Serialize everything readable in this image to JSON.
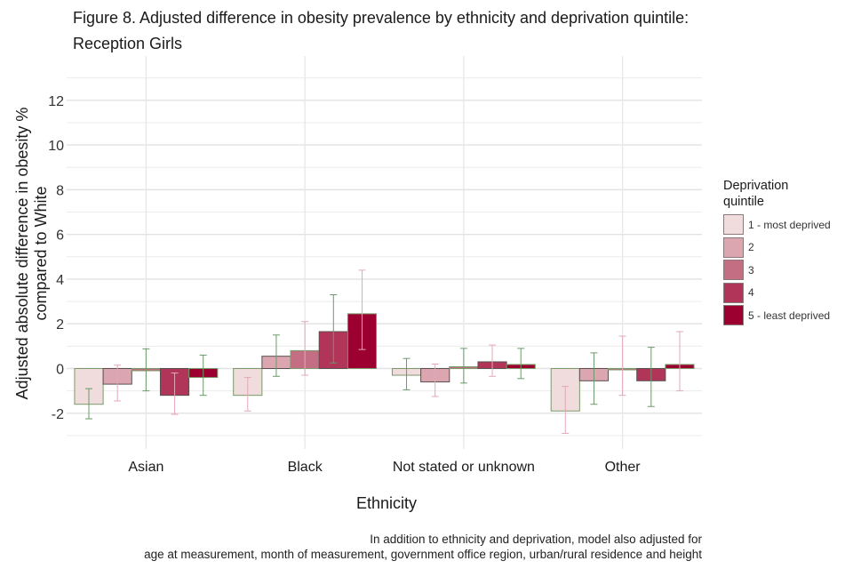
{
  "chart_data": {
    "type": "bar",
    "title": "Figure 8. Adjusted difference in obesity prevalence by ethnicity and deprivation quintile:",
    "subtitle": "Reception Girls",
    "xlabel": "Ethnicity",
    "ylabel_line1": "Adjusted absolute difference in obesity %",
    "ylabel_line2": "compared to White",
    "caption_line1": "In addition to ethnicity and deprivation, model also adjusted for",
    "caption_line2": "age at measurement, month of measurement, government office region, urban/rural residence and height",
    "ylim": [
      -3.6,
      14.3
    ],
    "y_ticks": [
      -2,
      0,
      2,
      4,
      6,
      8,
      10,
      12
    ],
    "y_tick_labels": [
      "-2",
      "0",
      "2",
      "4",
      "6",
      "8",
      "10",
      "12"
    ],
    "grid": true,
    "legend_position": "right",
    "legend_title_line1": "Deprivation",
    "legend_title_line2": "quintile",
    "categories": [
      "Asian",
      "Black",
      "Not stated or unknown",
      "Other"
    ],
    "series": [
      {
        "name": "1 - most deprived",
        "color": "#f0dcdc",
        "values": [
          -1.6,
          -1.2,
          -0.3,
          -1.9
        ],
        "ci_low": [
          -2.25,
          -1.9,
          -0.95,
          -2.9
        ],
        "ci_high": [
          -0.9,
          -0.4,
          0.45,
          -0.8
        ]
      },
      {
        "name": "2",
        "color": "#dca6b0",
        "values": [
          -0.7,
          0.55,
          -0.6,
          -0.55
        ],
        "ci_low": [
          -1.45,
          -0.35,
          -1.25,
          -1.6
        ],
        "ci_high": [
          0.15,
          1.5,
          0.2,
          0.7
        ]
      },
      {
        "name": "3",
        "color": "#c46e84",
        "values": [
          -0.1,
          0.8,
          0.08,
          0.0
        ],
        "ci_low": [
          -1.0,
          -0.3,
          -0.65,
          -1.2
        ],
        "ci_high": [
          0.88,
          2.1,
          0.9,
          1.45
        ]
      },
      {
        "name": "4",
        "color": "#b03558",
        "values": [
          -1.2,
          1.65,
          0.3,
          -0.55
        ],
        "ci_low": [
          -2.05,
          0.25,
          -0.35,
          -1.7
        ],
        "ci_high": [
          -0.2,
          3.3,
          1.05,
          0.95
        ]
      },
      {
        "name": "5 - least deprived",
        "color": "#9b0030",
        "values": [
          -0.4,
          2.45,
          0.18,
          0.18
        ],
        "ci_low": [
          -1.2,
          0.85,
          -0.45,
          -1.0
        ],
        "ci_high": [
          0.6,
          4.4,
          0.9,
          1.65
        ]
      }
    ],
    "bar_border_colors": [
      "#7a9a6a",
      "#5a5050"
    ],
    "errorbar_colors": [
      "#6a9a6a",
      "#e3a8b8"
    ]
  }
}
